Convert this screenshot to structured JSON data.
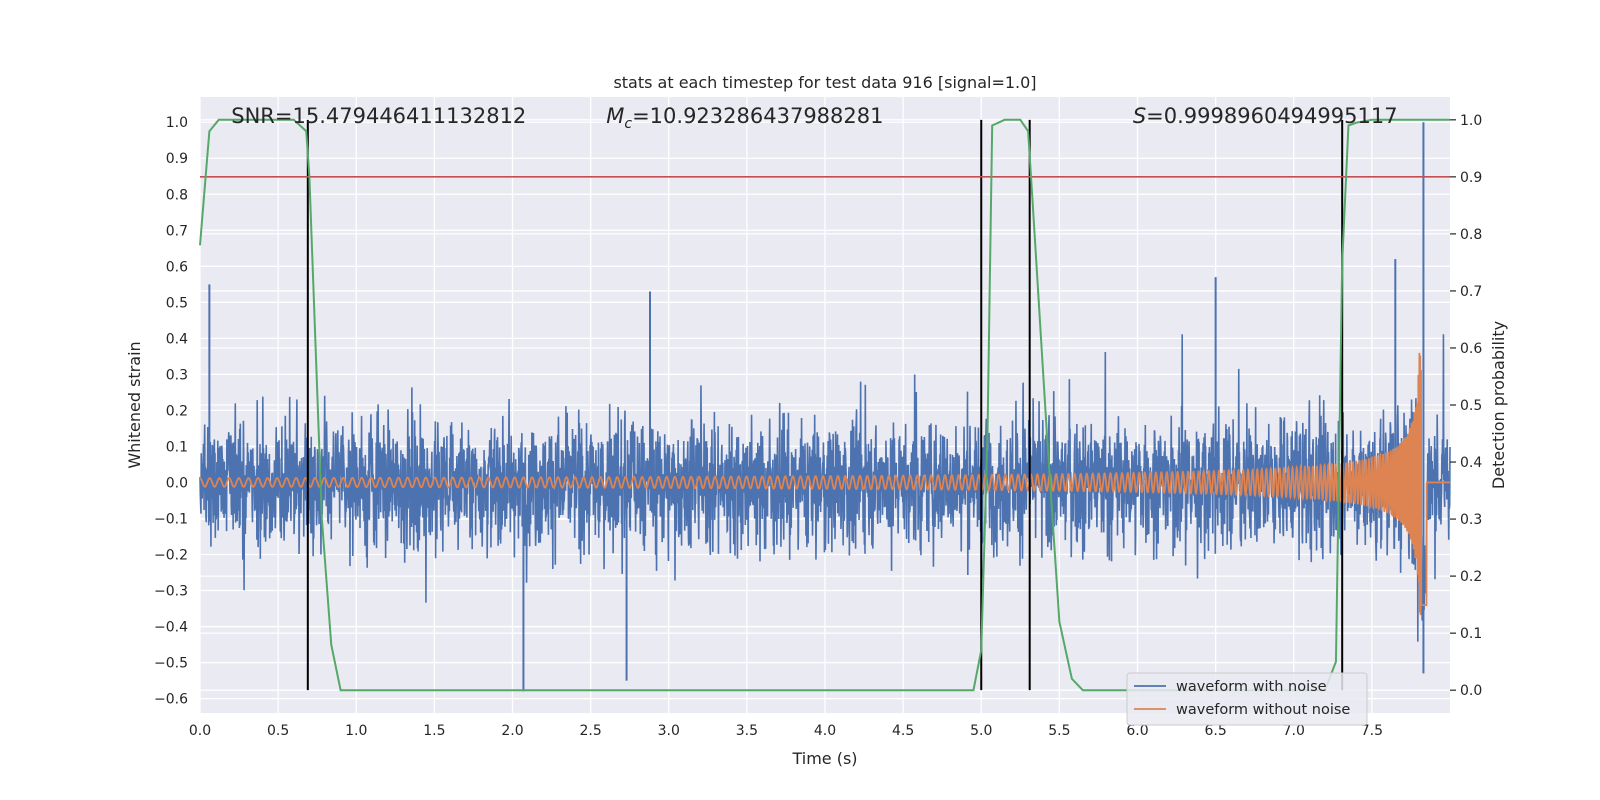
{
  "chart_data": {
    "type": "line",
    "title": "stats at each timestep for test data 916 [signal=1.0]",
    "xlabel": "Time (s)",
    "ylabel": "Whitened strain",
    "y2label": "Detection probability",
    "xlim": [
      0.0,
      8.0
    ],
    "ylim": [
      -0.64,
      1.07
    ],
    "y2lim": [
      -0.04,
      1.04
    ],
    "x_ticks": [
      0.0,
      0.5,
      1.0,
      1.5,
      2.0,
      2.5,
      3.0,
      3.5,
      4.0,
      4.5,
      5.0,
      5.5,
      6.0,
      6.5,
      7.0,
      7.5
    ],
    "x_tick_labels": [
      "0.0",
      "0.5",
      "1.0",
      "1.5",
      "2.0",
      "2.5",
      "3.0",
      "3.5",
      "4.0",
      "4.5",
      "5.0",
      "5.5",
      "6.0",
      "6.5",
      "7.0",
      "7.5"
    ],
    "y_ticks": [
      1.0,
      0.9,
      0.8,
      0.7,
      0.6,
      0.5,
      0.4,
      0.3,
      0.2,
      0.1,
      0.0,
      -0.1,
      -0.2,
      -0.3,
      -0.4,
      -0.5,
      -0.6
    ],
    "y_tick_labels": [
      "1.0",
      "0.9",
      "0.8",
      "0.7",
      "0.6",
      "0.5",
      "0.4",
      "0.3",
      "0.2",
      "0.1",
      "0.0",
      "−0.1",
      "−0.2",
      "−0.3",
      "−0.4",
      "−0.5",
      "−0.6"
    ],
    "y2_ticks": [
      1.0,
      0.9,
      0.8,
      0.7,
      0.6,
      0.5,
      0.4,
      0.3,
      0.2,
      0.1,
      0.0
    ],
    "y2_tick_labels": [
      "1.0",
      "0.9",
      "0.8",
      "0.7",
      "0.6",
      "0.5",
      "0.4",
      "0.3",
      "0.2",
      "0.1",
      "0.0"
    ],
    "grid": true,
    "annotations": [
      {
        "text": "SNR=15.479446411132812",
        "x": 0.2
      },
      {
        "text_math": "M",
        "text_sub": "c",
        "text_rest": "=10.923286437988281",
        "x": 2.6
      },
      {
        "text_math": "S",
        "text_sub": "",
        "text_rest": "=0.9998960494995117",
        "x": 5.97
      }
    ],
    "threshold": {
      "axis": "y2",
      "value": 0.9,
      "color": "#c44e52"
    },
    "vertical_lines": [
      0.69,
      5.0,
      5.31,
      7.31
    ],
    "series": [
      {
        "name": "waveform with noise",
        "axis": "y",
        "color": "#4c72b0",
        "kind": "noise",
        "x_range": [
          0.0,
          8.0
        ],
        "noise_max": 0.66,
        "noise_min": -0.58,
        "spikes": [
          [
            0.06,
            0.55
          ],
          [
            2.07,
            -0.58
          ],
          [
            2.73,
            -0.55
          ],
          [
            2.88,
            0.53
          ],
          [
            7.83,
            1.0
          ],
          [
            7.83,
            -0.53
          ],
          [
            6.5,
            0.57
          ],
          [
            7.65,
            0.62
          ]
        ]
      },
      {
        "name": "waveform without noise",
        "axis": "y",
        "color": "#dd8452",
        "kind": "chirp",
        "x_range": [
          0.0,
          7.85
        ],
        "amplitude_start": 0.012,
        "amplitude_end": 0.37,
        "merger_time": 7.82
      },
      {
        "name": "",
        "axis": "y2",
        "color": "#55a868",
        "kind": "probability",
        "x": [
          0.0,
          0.06,
          0.12,
          0.2,
          0.4,
          0.6,
          0.68,
          0.7,
          0.78,
          0.84,
          0.9,
          1.0,
          2.0,
          3.0,
          4.0,
          4.5,
          4.95,
          5.0,
          5.04,
          5.07,
          5.15,
          5.25,
          5.3,
          5.33,
          5.42,
          5.5,
          5.58,
          5.65,
          5.8,
          6.5,
          7.0,
          7.2,
          7.27,
          7.31,
          7.35,
          7.4,
          7.5,
          7.6,
          7.8,
          8.0
        ],
        "values": [
          0.78,
          0.98,
          1.0,
          1.0,
          1.0,
          1.0,
          0.98,
          0.9,
          0.3,
          0.08,
          0.0,
          0.0,
          0.0,
          0.0,
          0.0,
          0.0,
          0.0,
          0.07,
          0.45,
          0.99,
          1.0,
          1.0,
          0.98,
          0.85,
          0.45,
          0.12,
          0.02,
          0.0,
          0.0,
          0.0,
          0.0,
          0.0,
          0.05,
          0.75,
          0.99,
          0.995,
          1.0,
          1.0,
          1.0,
          1.0
        ]
      }
    ],
    "legend": {
      "placement": "lower-right",
      "entries": [
        "waveform with noise",
        "waveform without noise"
      ]
    },
    "colors": {
      "background": "#eaeaf2",
      "grid": "#ffffff",
      "vline": "#000000"
    }
  }
}
